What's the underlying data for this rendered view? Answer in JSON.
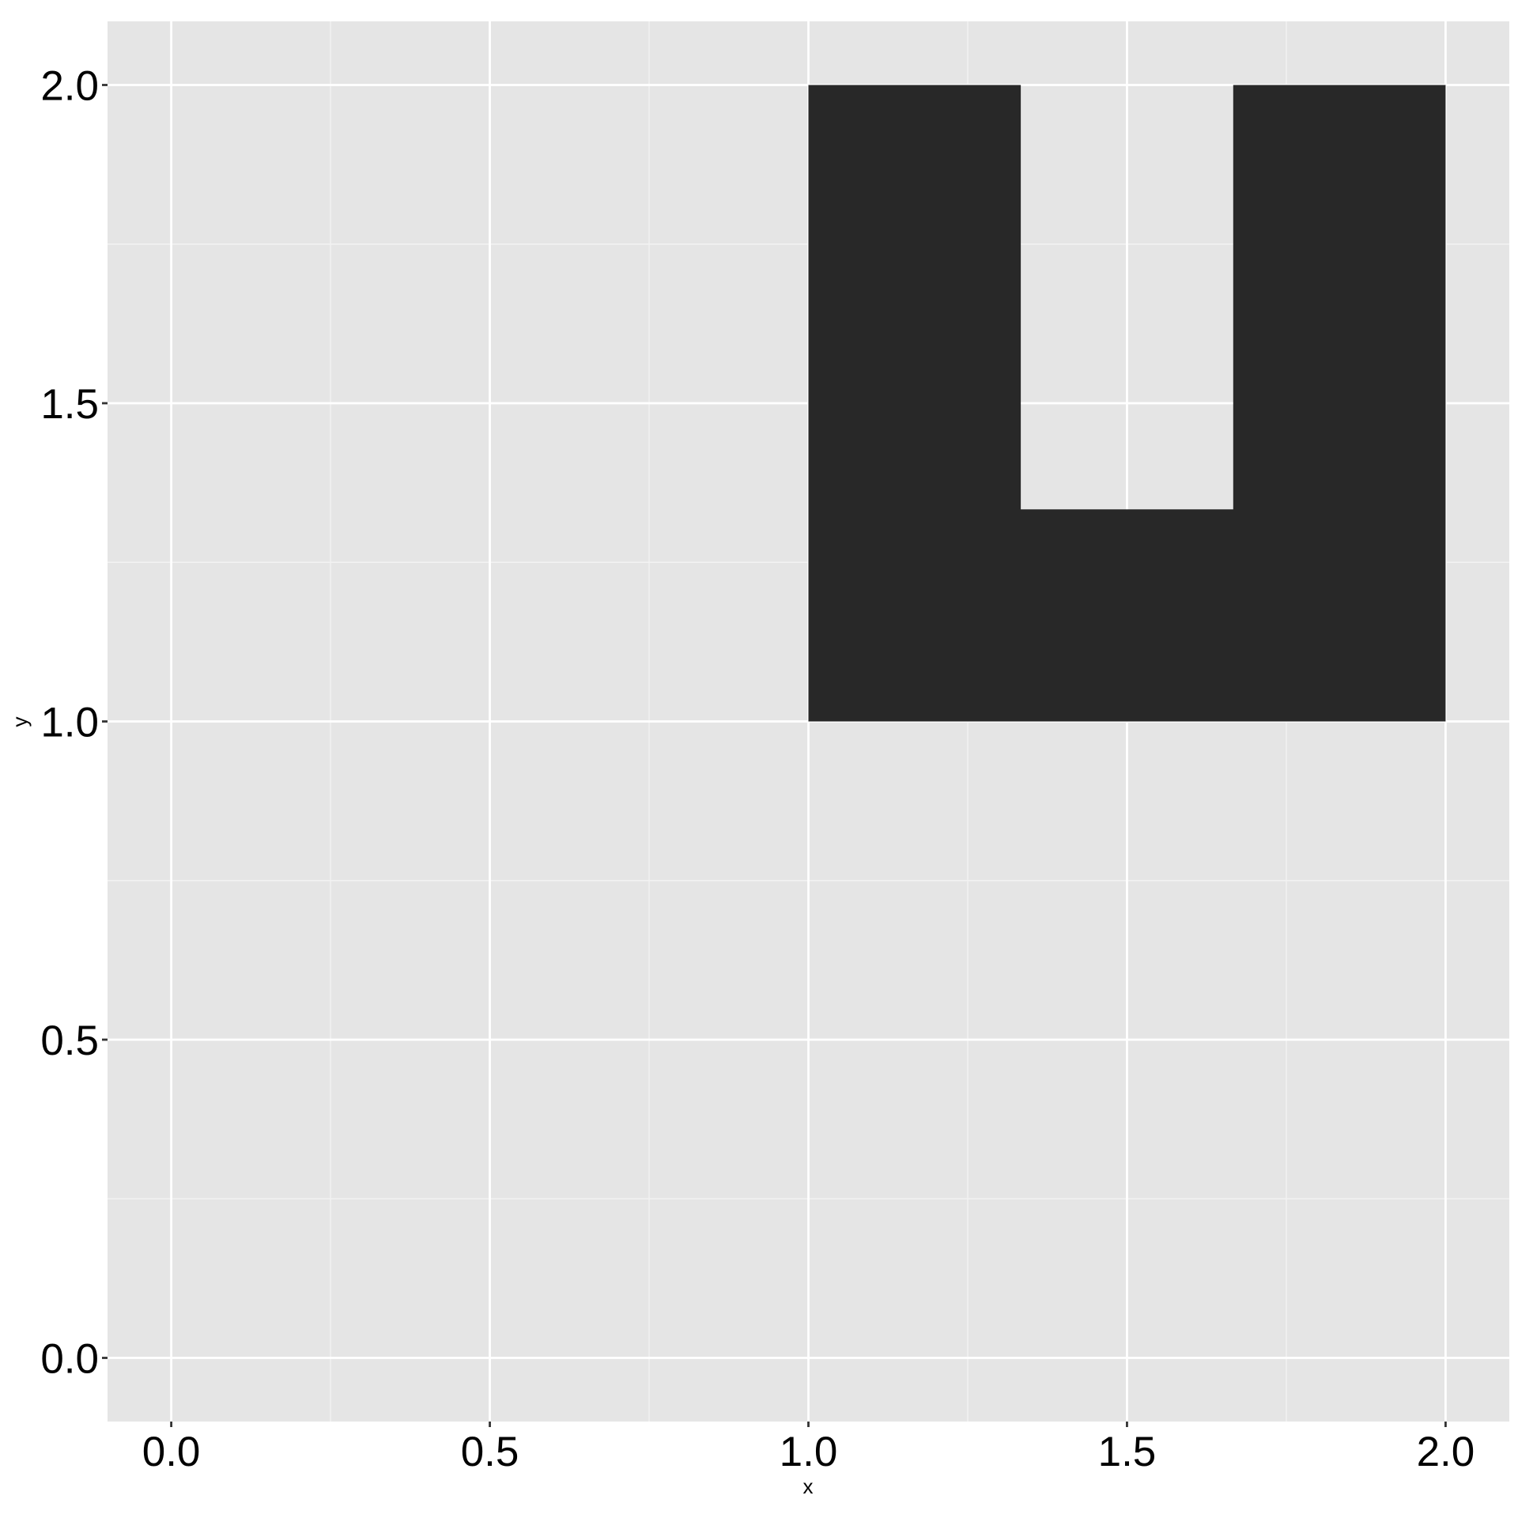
{
  "chart_data": {
    "type": "polygon",
    "title": "",
    "xlabel": "x",
    "ylabel": "y",
    "xlim": [
      -0.1,
      2.1
    ],
    "ylim": [
      -0.1,
      2.1
    ],
    "x_ticks": [
      0.0,
      0.5,
      1.0,
      1.5,
      2.0
    ],
    "y_ticks": [
      0.0,
      0.5,
      1.0,
      1.5,
      2.0
    ],
    "x_tick_labels": [
      "0.0",
      "0.5",
      "1.0",
      "1.5",
      "2.0"
    ],
    "y_tick_labels": [
      "0.0",
      "0.5",
      "1.0",
      "1.5",
      "2.0"
    ],
    "x_minor_ticks": [
      0.25,
      0.75,
      1.25,
      1.75
    ],
    "y_minor_ticks": [
      0.25,
      0.75,
      1.25,
      1.75
    ],
    "grid": true,
    "legend": "none",
    "shape": {
      "name": "u-shape",
      "fill": "#282828",
      "vertices": [
        [
          1.0,
          1.0
        ],
        [
          2.0,
          1.0
        ],
        [
          2.0,
          2.0
        ],
        [
          1.6667,
          2.0
        ],
        [
          1.6667,
          1.3333
        ],
        [
          1.3333,
          1.3333
        ],
        [
          1.3333,
          2.0
        ],
        [
          1.0,
          2.0
        ]
      ]
    }
  },
  "colors": {
    "panel_background": "#e5e5e5",
    "grid_major": "#ffffff",
    "grid_minor": "#f2f2f2",
    "tick_mark": "#333333",
    "text": "#000000"
  }
}
